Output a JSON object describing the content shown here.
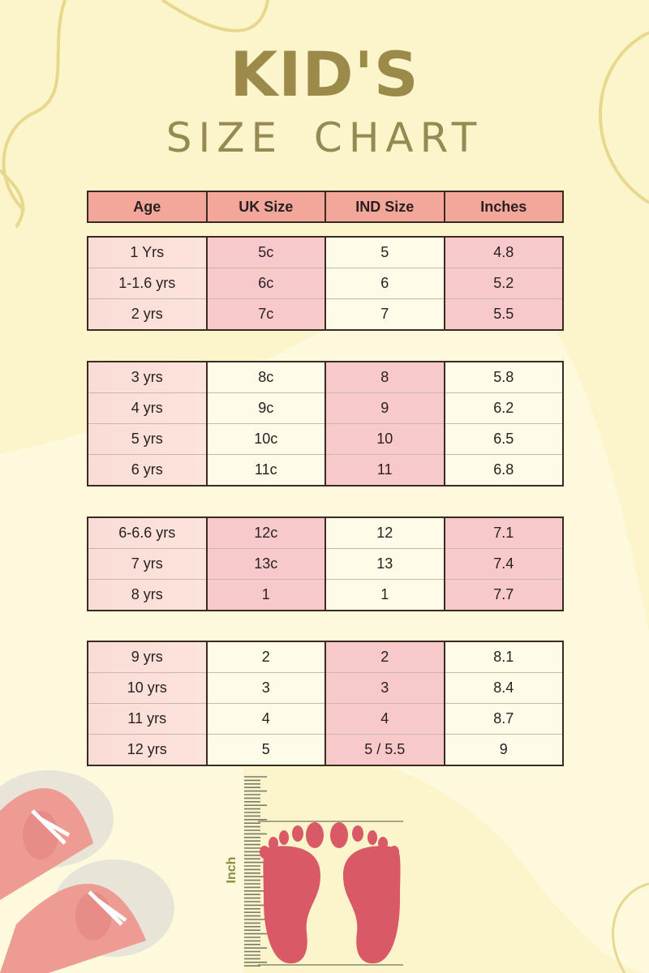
{
  "title": {
    "line1": "KID'S",
    "line2": "SIZE CHART"
  },
  "colors": {
    "header": "#f2a79a",
    "pink_cell": "#f8c9cb",
    "title": "#9b8a4a",
    "background": "#fdf9dc",
    "foot": "#d95a66"
  },
  "table": {
    "headers": [
      "Age",
      "UK Size",
      "IND Size",
      "Inches"
    ],
    "groups": [
      [
        [
          "1 Yrs",
          "5c",
          "5",
          "4.8"
        ],
        [
          "1-1.6 yrs",
          "6c",
          "6",
          "5.2"
        ],
        [
          "2 yrs",
          "7c",
          "7",
          "5.5"
        ]
      ],
      [
        [
          "3 yrs",
          "8c",
          "8",
          "5.8"
        ],
        [
          "4 yrs",
          "9c",
          "9",
          "6.2"
        ],
        [
          "5 yrs",
          "10c",
          "10",
          "6.5"
        ],
        [
          "6 yrs",
          "11c",
          "11",
          "6.8"
        ]
      ],
      [
        [
          "6-6.6 yrs",
          "12c",
          "12",
          "7.1"
        ],
        [
          "7 yrs",
          "13c",
          "13",
          "7.4"
        ],
        [
          "8 yrs",
          "1",
          "1",
          "7.7"
        ]
      ],
      [
        [
          "9 yrs",
          "2",
          "2",
          "8.1"
        ],
        [
          "10 yrs",
          "3",
          "3",
          "8.4"
        ],
        [
          "11 yrs",
          "4",
          "4",
          "8.7"
        ],
        [
          "12 yrs",
          "5",
          "5 / 5.5",
          "9"
        ]
      ]
    ]
  },
  "ruler": {
    "label": "Inch"
  },
  "icons": [
    "shoe-icon",
    "footprint-icon",
    "ruler-icon"
  ]
}
